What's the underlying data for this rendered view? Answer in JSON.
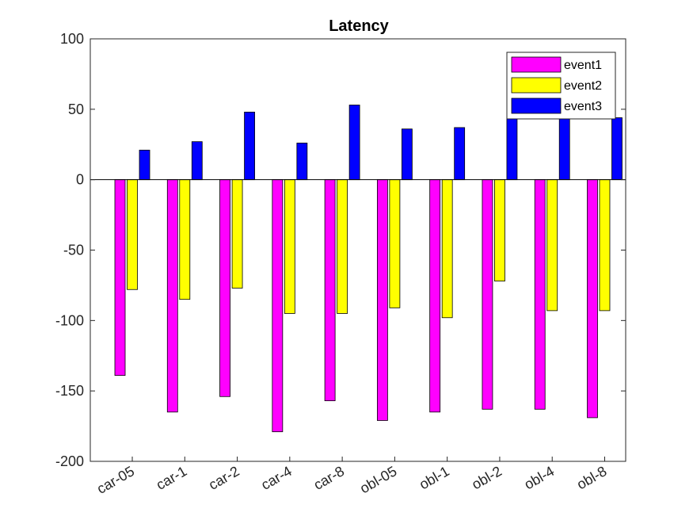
{
  "chart_data": {
    "type": "bar",
    "title": "Latency",
    "xlabel": "",
    "ylabel": "",
    "ylim": [
      -200,
      100
    ],
    "yticks": [
      100,
      50,
      0,
      -50,
      -100,
      -150,
      -200
    ],
    "categories": [
      "car-05",
      "car-1",
      "car-2",
      "car-4",
      "car-8",
      "obl-05",
      "obl-1",
      "obl-2",
      "obl-4",
      "obl-8"
    ],
    "series": [
      {
        "name": "event1",
        "color": "#ff00ff",
        "values": [
          -139,
          -165,
          -154,
          -179,
          -157,
          -171,
          -165,
          -163,
          -163,
          -169
        ]
      },
      {
        "name": "event2",
        "color": "#ffff00",
        "values": [
          -78,
          -85,
          -77,
          -95,
          -95,
          -91,
          -98,
          -72,
          -93,
          -93
        ]
      },
      {
        "name": "event3",
        "color": "#0000ff",
        "values": [
          21,
          27,
          48,
          26,
          53,
          36,
          37,
          45,
          44,
          44
        ]
      }
    ],
    "grid": false,
    "legend_position": "top-right"
  }
}
